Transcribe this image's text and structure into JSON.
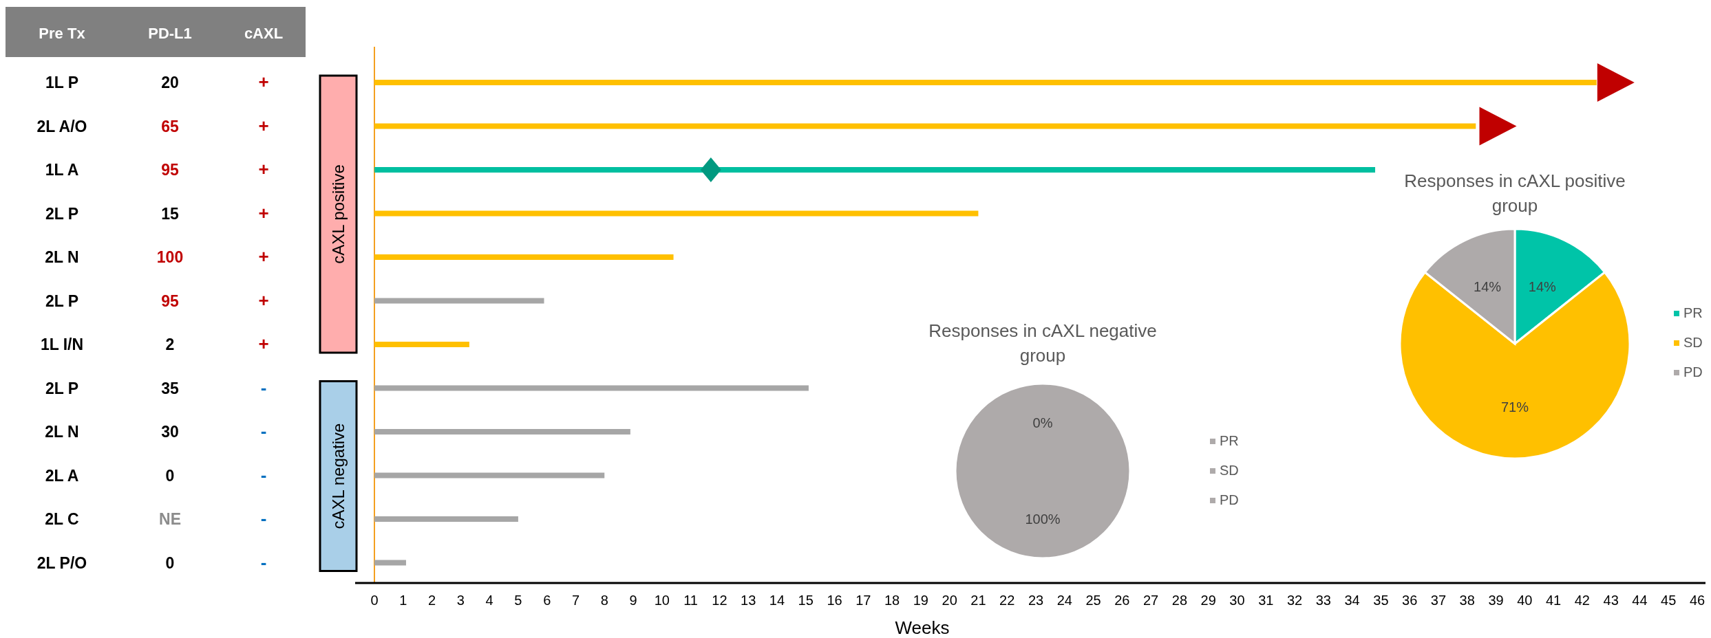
{
  "chart_data": [
    {
      "type": "other",
      "annotations": [
        "Pre Tx",
        "PD-L1",
        "cAXL",
        "1L P",
        "20",
        "+",
        "2L A/O",
        "65",
        "+",
        "1L A",
        "95",
        "+",
        "2L P",
        "15",
        "+",
        "2L N",
        "100",
        "+",
        "2L P",
        "95",
        "+",
        "1L I/N",
        "2",
        "+",
        "2L P",
        "35",
        "-",
        "2L N",
        "30",
        "-",
        "2L A",
        "0",
        "-",
        "2L C",
        "NE",
        "-",
        "2L P/O",
        "0",
        "-"
      ]
    },
    {
      "type": "bar",
      "orientation": "horizontal",
      "categories": [
        null,
        null,
        null,
        null,
        null,
        null,
        null,
        null,
        null,
        null,
        null,
        null
      ],
      "xlabel": "Weeks",
      "xlim": [
        0,
        46
      ],
      "xticks": [
        0,
        1,
        2,
        3,
        4,
        5,
        6,
        7,
        8,
        9,
        10,
        11,
        12,
        13,
        14,
        15,
        16,
        17,
        18,
        19,
        20,
        21,
        22,
        23,
        24,
        25,
        26,
        27,
        28,
        29,
        30,
        31,
        32,
        33,
        34,
        35,
        36,
        37,
        38,
        39,
        40,
        41,
        42,
        43,
        44,
        45,
        46
      ],
      "series": [
        {
          "values": [
            42.5,
            38.3,
            34.8,
            21.0,
            10.4,
            5.9,
            3.3,
            15.1,
            8.9,
            8.0,
            5.0,
            1.1
          ],
          "colors": [
            "#ffc000",
            "#ffc000",
            "#00bfa0",
            "#ffc000",
            "#ffc000",
            "#a6a6a6",
            "#ffc000",
            "#a6a6a6",
            "#a6a6a6",
            "#a6a6a6",
            "#a6a6a6",
            "#a6a6a6"
          ]
        },
        {
          "type": "scatter",
          "marker": "diamond",
          "color": "#009980",
          "values": [
            null,
            null,
            11.7,
            null,
            null,
            null,
            null,
            null,
            null,
            null,
            null,
            null
          ]
        },
        {
          "type": "scatter",
          "marker": "triangle",
          "color": "#c00000",
          "values": [
            43.1,
            39.0,
            null,
            null,
            null,
            null,
            null,
            null,
            null,
            null,
            null,
            null
          ]
        }
      ],
      "annotations": [
        "cAXL positive",
        "cAXL negative"
      ]
    },
    {
      "type": "pie",
      "title": "Responses in cAXL negative group",
      "categories": [
        "PR",
        "SD",
        "PD"
      ],
      "values": [
        0,
        0,
        100
      ],
      "colors": [
        "#aeaaaa",
        "#aeaaaa",
        "#aeaaaa"
      ],
      "value_labels": [
        "0%",
        null,
        "100%"
      ],
      "legend": "right"
    },
    {
      "type": "pie",
      "title": "Responses in cAXL positive group",
      "categories": [
        "PR",
        "SD",
        "PD"
      ],
      "values": [
        14.3,
        71.4,
        14.3
      ],
      "colors": [
        "#00c4a8",
        "#ffc000",
        "#aeaaaa"
      ],
      "value_labels": [
        "14%",
        "71%",
        "14%"
      ],
      "legend": "right"
    }
  ]
}
